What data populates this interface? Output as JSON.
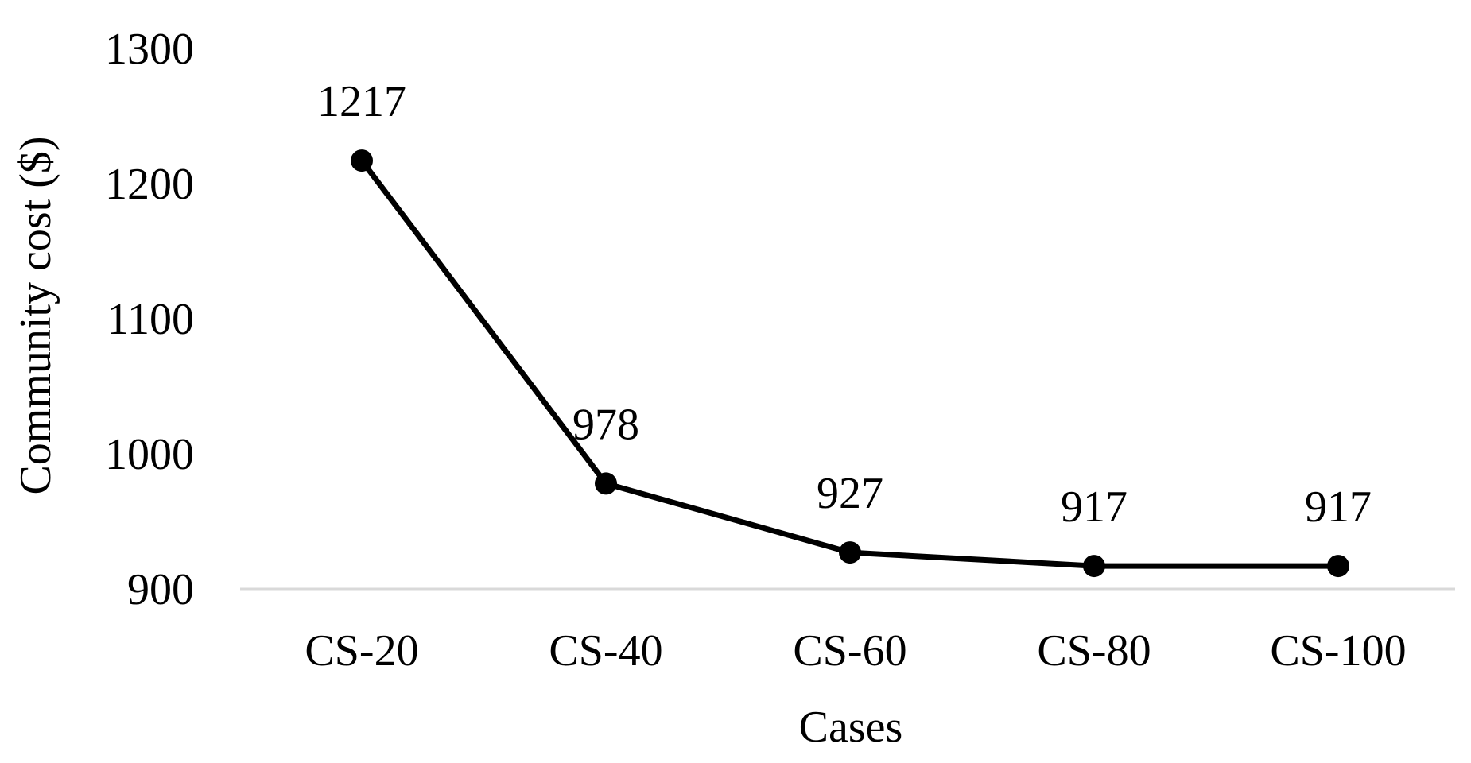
{
  "chart_data": {
    "type": "line",
    "title": "",
    "xlabel": "Cases",
    "ylabel": "Community cost ($)",
    "categories": [
      "CS-20",
      "CS-40",
      "CS-60",
      "CS-80",
      "CS-100"
    ],
    "series": [
      {
        "values": [
          1217,
          978,
          927,
          917,
          917
        ],
        "data_labels": [
          "1217",
          "978",
          "927",
          "917",
          "917"
        ],
        "color": "#000000"
      }
    ],
    "ylim": [
      900,
      1300
    ],
    "yticks": [
      900,
      1000,
      1100,
      1200,
      1300
    ],
    "ytick_labels": [
      "900",
      "1000",
      "1100",
      "1200",
      "1300"
    ],
    "grid": false,
    "legend": "none"
  }
}
